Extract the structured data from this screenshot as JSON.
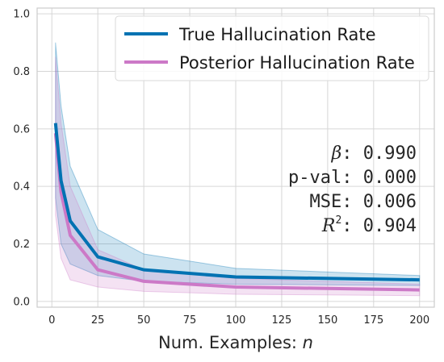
{
  "chart_data": {
    "type": "line",
    "xlabel": "Num. Examples: n",
    "xlabel_plain": "Num. Examples: ",
    "xlabel_var": "n",
    "ylabel": "",
    "xlim": [
      -8,
      208
    ],
    "ylim": [
      -0.02,
      1.02
    ],
    "x_ticks": [
      0,
      25,
      50,
      75,
      100,
      125,
      150,
      175,
      200
    ],
    "y_ticks": [
      0.0,
      0.2,
      0.4,
      0.6,
      0.8,
      1.0
    ],
    "x_tick_labels": [
      "0",
      "25",
      "50",
      "75",
      "100",
      "125",
      "150",
      "175",
      "200"
    ],
    "y_tick_labels": [
      "0.0",
      "0.2",
      "0.4",
      "0.6",
      "0.8",
      "1.0"
    ],
    "grid": true,
    "legend_position": "top-right",
    "x": [
      2,
      5,
      10,
      25,
      50,
      100,
      200
    ],
    "series": [
      {
        "name": "True Hallucination Rate",
        "color": "#0072b2",
        "values": [
          0.62,
          0.42,
          0.28,
          0.155,
          0.11,
          0.085,
          0.075
        ],
        "lower": [
          0.36,
          0.2,
          0.13,
          0.09,
          0.07,
          0.06,
          0.055
        ],
        "upper": [
          0.9,
          0.68,
          0.47,
          0.25,
          0.165,
          0.115,
          0.09
        ]
      },
      {
        "name": "Posterior Hallucination Rate",
        "color": "#cc79c7",
        "values": [
          0.585,
          0.38,
          0.23,
          0.11,
          0.07,
          0.05,
          0.04
        ],
        "lower": [
          0.3,
          0.15,
          0.075,
          0.05,
          0.035,
          0.025,
          0.02
        ],
        "upper": [
          0.85,
          0.62,
          0.4,
          0.18,
          0.11,
          0.08,
          0.06
        ]
      }
    ],
    "annotations": {
      "beta_symbol": "β",
      "beta_value": ": 0.990",
      "pval_line": "p-val: 0.000",
      "mse_line": "MSE: 0.006",
      "r2_base": "R",
      "r2_sup": "2",
      "r2_value": ": 0.904"
    }
  }
}
